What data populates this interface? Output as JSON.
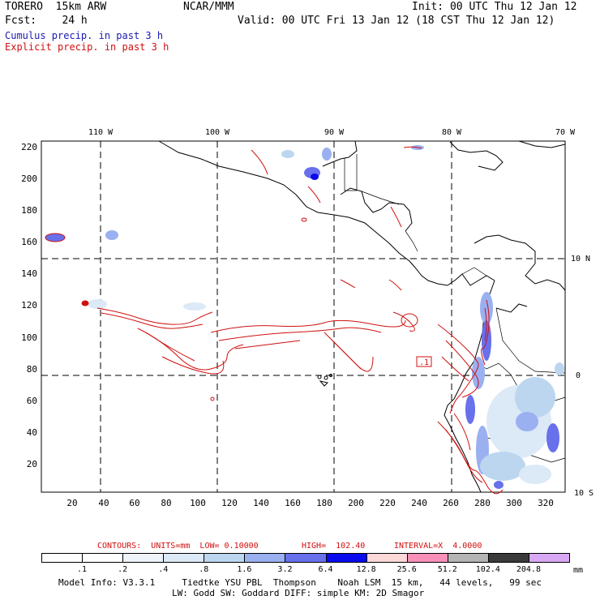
{
  "header": {
    "model": "TORERO  15km ARW",
    "org": "NCAR/MMM",
    "init": "Init: 00 UTC Thu 12 Jan 12",
    "fcst": "Fcst:    24 h",
    "valid": "Valid: 00 UTC Fri 13 Jan 12 (18 CST Thu 12 Jan 12)",
    "cumulus": "Cumulus precip. in past 3 h",
    "explicit": "Explicit precip. in past 3 h"
  },
  "colors": {
    "cumulus": "#1a1ab4",
    "explicit": "#d01010"
  },
  "axes": {
    "top_lon": [
      "110 W",
      "100 W",
      "90 W",
      "80 W",
      "70 W"
    ],
    "right_lat": [
      "10 N",
      "0",
      "10 S"
    ],
    "y_ticks": [
      "220",
      "200",
      "180",
      "160",
      "140",
      "120",
      "100",
      "80",
      "60",
      "40",
      "20"
    ],
    "x_ticks": [
      "20",
      "40",
      "60",
      "80",
      "100",
      "120",
      "140",
      "160",
      "180",
      "200",
      "220",
      "240",
      "260",
      "280",
      "300",
      "320"
    ]
  },
  "annotation": {
    "box_label": ".1"
  },
  "contour_info": {
    "contours": "CONTOURS:  UNITS=mm  LOW= 0.10000",
    "high": "HIGH=  102.40",
    "interval": "INTERVAL=X  4.0000"
  },
  "colorbar": {
    "colors": [
      "#ffffff",
      "#ffffff",
      "#eef4fa",
      "#dce9f6",
      "#bdd6f0",
      "#9ab0f0",
      "#6870ec",
      "#0a0aee",
      "#fcd8d8",
      "#f890b8",
      "#b4b4b4",
      "#3a3a3a",
      "#d8a8f4"
    ],
    "labels": [
      ".1",
      ".2",
      ".4",
      ".8",
      "1.6",
      "3.2",
      "6.4",
      "12.8",
      "25.6",
      "51.2",
      "102.4",
      "204.8"
    ],
    "unit": "mm"
  },
  "footer": {
    "line1": "Model Info: V3.3.1     Tiedtke YSU PBL  Thompson    Noah LSM  15 km,   44 levels,   99 sec",
    "line2": "LW: Godd SW: Goddard DIFF: simple KM: 2D Smagor"
  }
}
